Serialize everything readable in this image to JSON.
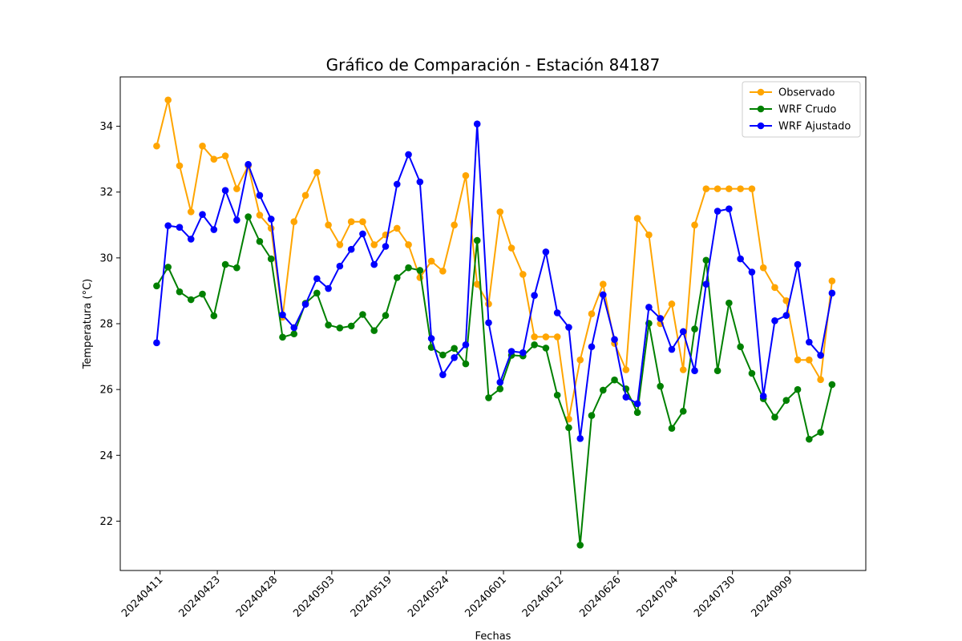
{
  "chart_data": {
    "type": "line",
    "title": "Gráfico de Comparación - Estación 84187",
    "xlabel": "Fechas",
    "ylabel": "Temperatura (°C)",
    "ylim": [
      20.5,
      35.5
    ],
    "yticks": [
      22,
      24,
      26,
      28,
      30,
      32,
      34
    ],
    "xticks": [
      {
        "i": 0.3,
        "label": "20240411"
      },
      {
        "i": 5.3,
        "label": "20240423"
      },
      {
        "i": 10.3,
        "label": "20240428"
      },
      {
        "i": 15.3,
        "label": "20240503"
      },
      {
        "i": 20.3,
        "label": "20240519"
      },
      {
        "i": 25.3,
        "label": "20240524"
      },
      {
        "i": 30.3,
        "label": "20240601"
      },
      {
        "i": 35.3,
        "label": "20240612"
      },
      {
        "i": 40.3,
        "label": "20240626"
      },
      {
        "i": 45.3,
        "label": "20240704"
      },
      {
        "i": 50.3,
        "label": "20240730"
      },
      {
        "i": 55.3,
        "label": "20240909"
      }
    ],
    "x": [
      0,
      1,
      2,
      3,
      4,
      5,
      6,
      7,
      8,
      9,
      10,
      11,
      12,
      13,
      14,
      15,
      16,
      17,
      18,
      19,
      20,
      21,
      22,
      23,
      24,
      25,
      26,
      27,
      28,
      29,
      30,
      31,
      32,
      33,
      34,
      35,
      36,
      37,
      38,
      39,
      40,
      41,
      42,
      43,
      44,
      45,
      46,
      47,
      48,
      49,
      50,
      51,
      52,
      53,
      54,
      55,
      56,
      57,
      58,
      59
    ],
    "legend_loc": "upper right",
    "series": [
      {
        "name": "Observado",
        "color": "#FFA500",
        "values": [
          33.4,
          34.8,
          32.8,
          31.4,
          33.4,
          33.0,
          33.1,
          32.1,
          32.8,
          31.3,
          30.9,
          28.2,
          31.1,
          31.9,
          32.6,
          31.0,
          30.4,
          31.1,
          31.1,
          30.4,
          30.7,
          30.9,
          30.4,
          29.4,
          29.9,
          29.6,
          31.0,
          32.5,
          29.2,
          28.6,
          31.4,
          30.3,
          29.5,
          27.6,
          27.6,
          27.6,
          25.1,
          26.9,
          28.3,
          29.2,
          27.4,
          26.6,
          31.2,
          30.7,
          28.0,
          28.6,
          26.6,
          31.0,
          32.1,
          32.1,
          32.1,
          32.1,
          32.1,
          29.7,
          29.1,
          28.7,
          26.9,
          26.9,
          26.3,
          29.3
        ]
      },
      {
        "name": "WRF Crudo",
        "color": "#008000",
        "values": [
          29.15,
          29.72,
          28.97,
          28.73,
          28.9,
          28.24,
          29.8,
          29.7,
          31.25,
          30.5,
          29.97,
          27.59,
          27.69,
          28.62,
          28.93,
          27.96,
          27.87,
          27.93,
          28.28,
          27.79,
          28.25,
          29.4,
          29.7,
          29.62,
          27.28,
          27.05,
          27.25,
          26.78,
          30.53,
          25.75,
          26.02,
          27.04,
          27.02,
          27.36,
          27.26,
          25.83,
          24.84,
          21.27,
          25.21,
          25.98,
          26.29,
          26.02,
          25.3,
          28.01,
          26.1,
          24.82,
          25.34,
          27.84,
          29.93,
          26.57,
          28.63,
          27.3,
          26.49,
          25.72,
          25.16,
          25.67,
          26.0,
          24.49,
          24.7,
          26.15
        ]
      },
      {
        "name": "WRF Ajustado",
        "color": "#0000FF",
        "values": [
          27.42,
          30.98,
          30.93,
          30.57,
          31.32,
          30.86,
          32.05,
          31.15,
          32.84,
          31.9,
          31.18,
          28.27,
          27.88,
          28.59,
          29.37,
          29.07,
          29.75,
          30.26,
          30.73,
          29.8,
          30.35,
          32.24,
          33.14,
          32.31,
          27.55,
          26.45,
          26.97,
          27.36,
          34.07,
          28.03,
          26.22,
          27.16,
          27.12,
          28.86,
          30.18,
          28.33,
          27.89,
          24.51,
          27.3,
          28.88,
          27.52,
          25.77,
          25.57,
          28.5,
          28.16,
          27.22,
          27.76,
          26.57,
          29.2,
          31.42,
          31.49,
          29.97,
          29.57,
          25.8,
          28.09,
          28.25,
          29.8,
          27.44,
          27.04,
          28.93
        ]
      }
    ]
  }
}
